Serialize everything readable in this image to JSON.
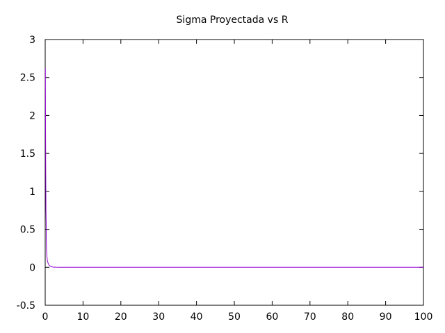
{
  "chart_data": {
    "type": "line",
    "title": "Sigma Proyectada vs R",
    "xlabel": "",
    "ylabel": "",
    "xlim": [
      0,
      100
    ],
    "ylim": [
      -0.5,
      3
    ],
    "xticks": [
      "0",
      "10",
      "20",
      "30",
      "40",
      "50",
      "60",
      "70",
      "80",
      "90",
      "100"
    ],
    "yticks": [
      "-0.5",
      "0",
      "0.5",
      "1",
      "1.5",
      "2",
      "2.5",
      "3"
    ],
    "grid": false,
    "legend": "none",
    "series_color": "#9400d3",
    "series": [
      {
        "x": [
          0.05,
          0.1,
          0.15,
          0.2,
          0.25,
          0.3,
          0.35,
          0.4,
          0.5,
          0.6,
          0.8,
          1.0,
          1.3,
          1.6,
          2.0,
          2.5,
          3.0,
          4.0,
          5.0,
          10,
          20,
          30,
          40,
          50,
          60,
          70,
          80,
          90,
          100
        ],
        "y": [
          2.62,
          1.8,
          1.2,
          0.75,
          0.6,
          0.35,
          0.25,
          0.18,
          0.12,
          0.08,
          0.05,
          0.03,
          0.015,
          0.008,
          0.004,
          0.002,
          0.001,
          0.0005,
          0.0002,
          0,
          0,
          0,
          0,
          0,
          0,
          0,
          0,
          0,
          0
        ]
      }
    ]
  }
}
